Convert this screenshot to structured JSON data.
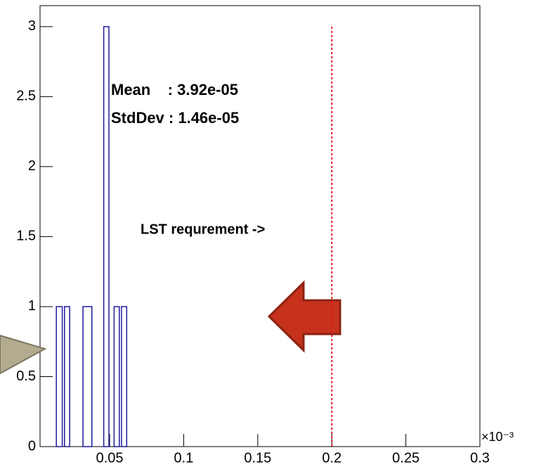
{
  "chart_data": {
    "type": "histogram",
    "bins": [
      0.014,
      0.018,
      0.0195,
      0.023,
      0.032,
      0.038,
      0.046,
      0.0495,
      0.053,
      0.0565,
      0.058,
      0.0615
    ],
    "values": [
      1,
      0,
      1,
      0,
      1,
      0,
      3,
      0,
      1,
      0,
      1
    ],
    "color": "#1a1aa0",
    "xlim": [
      0.003,
      0.3
    ],
    "ylim": [
      0,
      3.15
    ],
    "xticks": [
      0.05,
      0.1,
      0.15,
      0.2,
      0.25,
      0.3
    ],
    "yticks": [
      0,
      0.5,
      1,
      1.5,
      2,
      2.5,
      3
    ],
    "x_exponent_label": "×10⁻³",
    "stats": [
      "Mean    : 3.92e-05",
      "StdDev : 1.46e-05"
    ],
    "threshold": 0.2,
    "threshold_color": "#e8121a",
    "annotation": "LST requrement ->"
  }
}
